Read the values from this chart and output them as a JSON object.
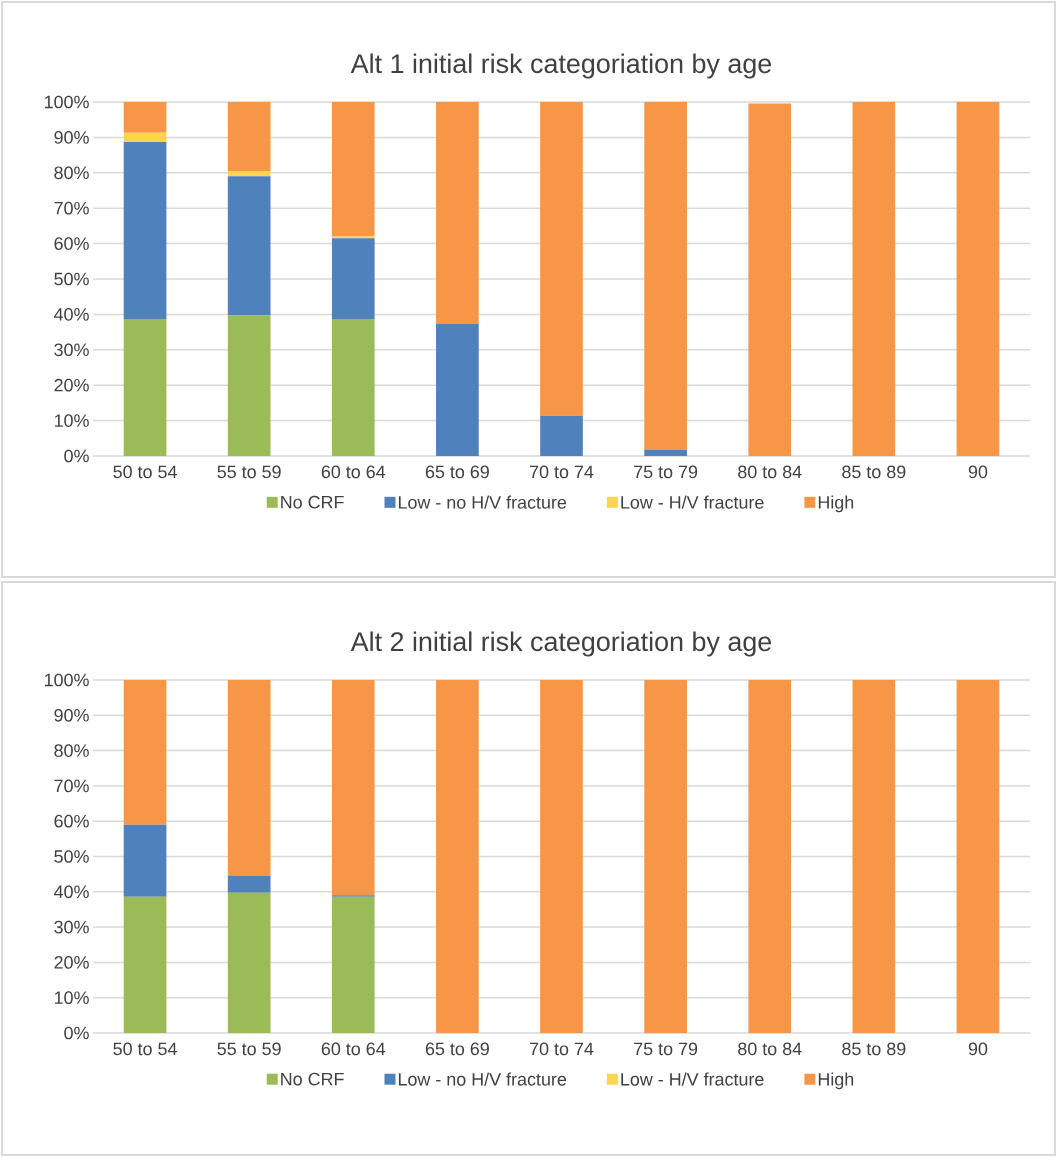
{
  "chart_data": [
    {
      "type": "bar",
      "title": "Alt 1 initial risk categoriation by age",
      "stacked": true,
      "grid": "y",
      "legend": "bottom",
      "categories": [
        "50 to 54",
        "55 to 59",
        "60 to 64",
        "65 to 69",
        "70 to 74",
        "75 to 79",
        "80 to 84",
        "85 to 89",
        "90"
      ],
      "ylim": [
        0,
        100
      ],
      "yticks": [
        {
          "value": 0,
          "label": "0%"
        },
        {
          "value": 10,
          "label": "10%"
        },
        {
          "value": 20,
          "label": "20%"
        },
        {
          "value": 30,
          "label": "30%"
        },
        {
          "value": 40,
          "label": "40%"
        },
        {
          "value": 50,
          "label": "50%"
        },
        {
          "value": 60,
          "label": "60%"
        },
        {
          "value": 70,
          "label": "70%"
        },
        {
          "value": 80,
          "label": "80%"
        },
        {
          "value": 90,
          "label": "90%"
        },
        {
          "value": 100,
          "label": "100%"
        }
      ],
      "series": [
        {
          "name": "No CRF",
          "color": "#9bbb59",
          "values": [
            38.7,
            39.7,
            38.7,
            0,
            0,
            0,
            0,
            0,
            0
          ]
        },
        {
          "name": "Low - no H/V fracture",
          "color": "#4f81bd",
          "values": [
            50,
            39.3,
            22.8,
            37.3,
            11.4,
            1.8,
            0,
            0,
            0
          ]
        },
        {
          "name": "Low - H/V fracture",
          "color": "#ffd54f",
          "values": [
            2.6,
            1.5,
            0.5,
            0,
            0,
            0,
            0,
            0,
            0
          ]
        },
        {
          "name": "High",
          "color": "#f79646",
          "values": [
            8.7,
            19.5,
            38,
            62.7,
            88.6,
            98.2,
            99.6,
            100,
            100
          ]
        }
      ]
    },
    {
      "type": "bar",
      "title": "Alt 2 initial risk categoriation by age",
      "stacked": true,
      "grid": "y",
      "legend": "bottom",
      "categories": [
        "50 to 54",
        "55 to 59",
        "60 to 64",
        "65 to 69",
        "70 to 74",
        "75 to 79",
        "80 to 84",
        "85 to 89",
        "90"
      ],
      "ylim": [
        0,
        100
      ],
      "yticks": [
        {
          "value": 0,
          "label": "0%"
        },
        {
          "value": 10,
          "label": "10%"
        },
        {
          "value": 20,
          "label": "20%"
        },
        {
          "value": 30,
          "label": "30%"
        },
        {
          "value": 40,
          "label": "40%"
        },
        {
          "value": 50,
          "label": "50%"
        },
        {
          "value": 60,
          "label": "60%"
        },
        {
          "value": 70,
          "label": "70%"
        },
        {
          "value": 80,
          "label": "80%"
        },
        {
          "value": 90,
          "label": "90%"
        },
        {
          "value": 100,
          "label": "100%"
        }
      ],
      "series": [
        {
          "name": "No CRF",
          "color": "#9bbb59",
          "values": [
            38.6,
            39.7,
            38.6,
            0,
            0,
            0,
            0,
            0,
            0
          ]
        },
        {
          "name": "Low - no H/V fracture",
          "color": "#4f81bd",
          "values": [
            20.4,
            4.8,
            0.4,
            0,
            0,
            0,
            0,
            0,
            0
          ]
        },
        {
          "name": "Low - H/V fracture",
          "color": "#ffd54f",
          "values": [
            0,
            0,
            0,
            0,
            0,
            0,
            0,
            0,
            0
          ]
        },
        {
          "name": "High",
          "color": "#f79646",
          "values": [
            41,
            55.5,
            61,
            100,
            100,
            100,
            100,
            100,
            100
          ]
        }
      ]
    }
  ]
}
